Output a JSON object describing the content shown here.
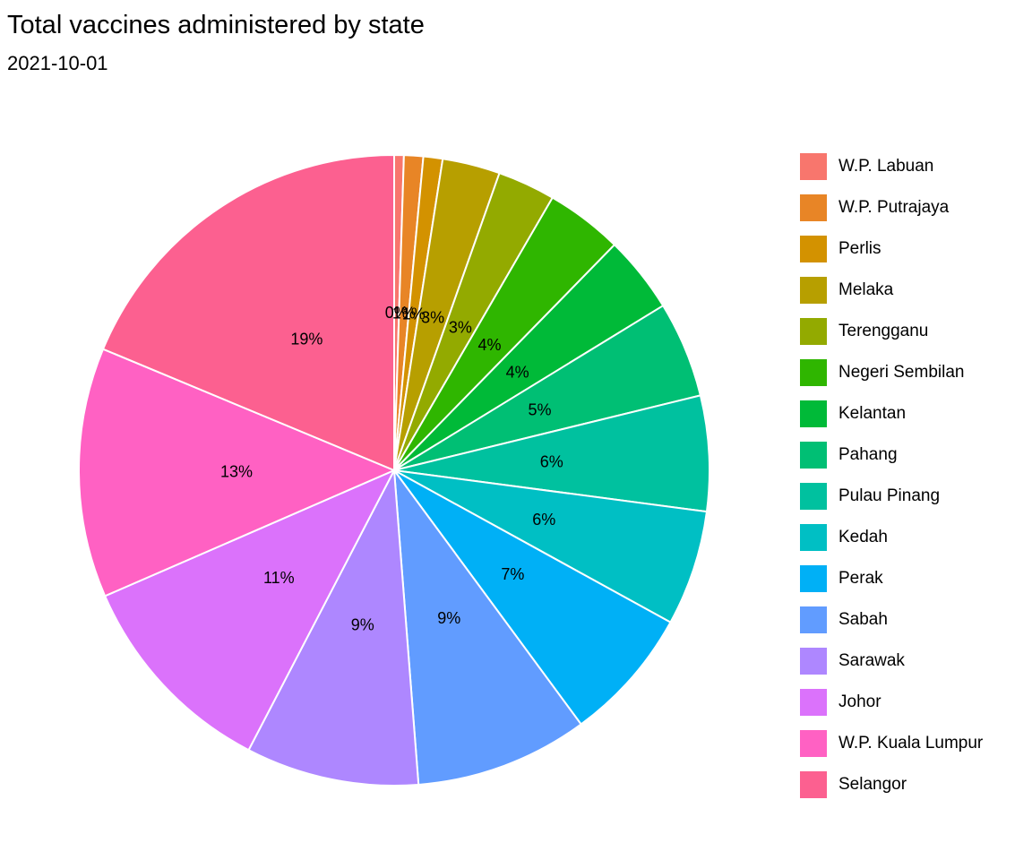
{
  "chart_data": {
    "type": "pie",
    "title": "Total vaccines administered by state",
    "subtitle": "2021-10-01",
    "start_angle_deg": 0,
    "direction": "clockwise",
    "slice_border_color": "#FFFFFF",
    "label_color": "#000000",
    "background_color": "#FFFFFF",
    "legend_position": "right",
    "slices": [
      {
        "label": "W.P. Labuan",
        "pct_label": "0%",
        "value": 0.5,
        "color": "#F8766D"
      },
      {
        "label": "W.P. Putrajaya",
        "pct_label": "1%",
        "value": 1,
        "color": "#E88526"
      },
      {
        "label": "Perlis",
        "pct_label": "1%",
        "value": 1,
        "color": "#D39200"
      },
      {
        "label": "Melaka",
        "pct_label": "3%",
        "value": 3,
        "color": "#B79F00"
      },
      {
        "label": "Terengganu",
        "pct_label": "3%",
        "value": 3,
        "color": "#93AA00"
      },
      {
        "label": "Negeri Sembilan",
        "pct_label": "4%",
        "value": 4,
        "color": "#2FB600"
      },
      {
        "label": "Kelantan",
        "pct_label": "4%",
        "value": 4,
        "color": "#00BA38"
      },
      {
        "label": "Pahang",
        "pct_label": "5%",
        "value": 5,
        "color": "#00BF74"
      },
      {
        "label": "Pulau Pinang",
        "pct_label": "6%",
        "value": 6,
        "color": "#00C19F"
      },
      {
        "label": "Kedah",
        "pct_label": "6%",
        "value": 6,
        "color": "#00BFC4"
      },
      {
        "label": "Perak",
        "pct_label": "7%",
        "value": 7,
        "color": "#00B0F6"
      },
      {
        "label": "Sabah",
        "pct_label": "9%",
        "value": 9,
        "color": "#619CFF"
      },
      {
        "label": "Sarawak",
        "pct_label": "9%",
        "value": 9,
        "color": "#AE87FF"
      },
      {
        "label": "Johor",
        "pct_label": "11%",
        "value": 11,
        "color": "#DB72FB"
      },
      {
        "label": "W.P. Kuala Lumpur",
        "pct_label": "13%",
        "value": 13,
        "color": "#FF61C3"
      },
      {
        "label": "Selangor",
        "pct_label": "19%",
        "value": 19,
        "color": "#FC6090"
      }
    ]
  }
}
